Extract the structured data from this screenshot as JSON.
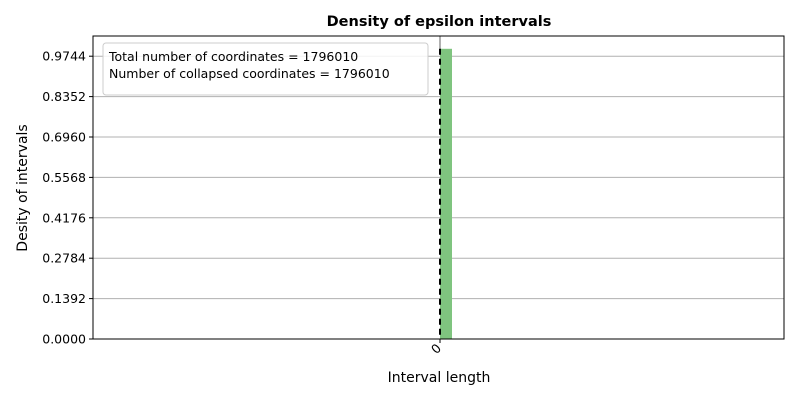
{
  "chart_data": {
    "type": "bar",
    "title": "Density of epsilon intervals",
    "xlabel": "Interval length",
    "ylabel": "Desity of intervals",
    "categories": [
      "0"
    ],
    "values": [
      0.9999
    ],
    "y_ticks": [
      "0.0000",
      "0.1392",
      "0.2784",
      "0.4176",
      "0.5568",
      "0.6960",
      "0.8352",
      "0.9744"
    ],
    "x_ticks": [
      "0"
    ],
    "ylim": [
      0,
      1.044
    ],
    "grid": "horizontal",
    "bar_color": "#7fc47f",
    "reference_line": {
      "x": 0,
      "style": "dashed",
      "color": "#000000"
    },
    "legend": {
      "placement": "top-left",
      "lines": [
        "Total number of coordinates = 1796010",
        "Number of collapsed coordinates = 1796010"
      ]
    }
  }
}
